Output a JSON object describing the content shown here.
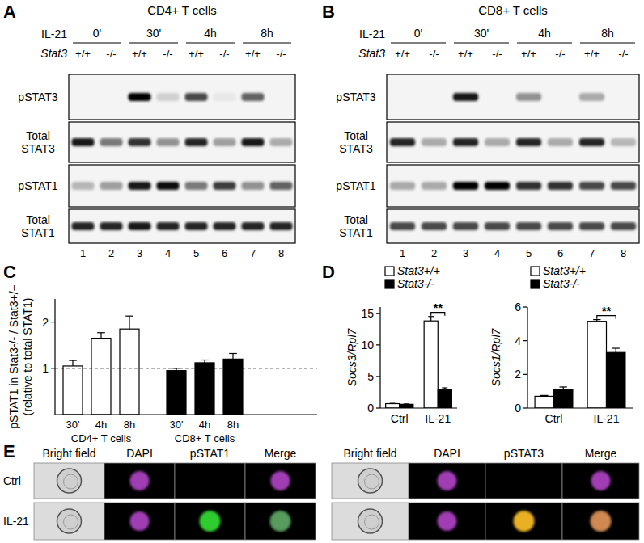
{
  "panel_labels": [
    "A",
    "B",
    "C",
    "D",
    "E"
  ],
  "blots": [
    {
      "title": "CD4+ T cells",
      "treatment": "IL-21",
      "genotype_label": "Stat3",
      "times": [
        "0'",
        "30'",
        "4h",
        "8h"
      ],
      "genotypes": [
        "+/+",
        "-/-",
        "+/+",
        "-/-",
        "+/+",
        "-/-",
        "+/+",
        "-/-"
      ],
      "lanes": [
        1,
        2,
        3,
        4,
        5,
        6,
        7,
        8
      ],
      "rows": [
        {
          "label": "pSTAT3",
          "intensity": [
            0,
            0,
            1,
            0.15,
            0.7,
            0.05,
            0.6,
            0
          ]
        },
        {
          "label": "Total STAT3",
          "intensity": [
            0.9,
            0.5,
            0.8,
            0.4,
            0.85,
            0.35,
            0.9,
            0.3
          ]
        },
        {
          "label": "pSTAT1",
          "intensity": [
            0.25,
            0.35,
            0.9,
            0.95,
            0.5,
            0.75,
            0.4,
            0.6
          ]
        },
        {
          "label": "Total STAT1",
          "intensity": [
            0.85,
            0.85,
            0.9,
            0.85,
            0.85,
            0.85,
            0.85,
            0.85
          ]
        }
      ]
    },
    {
      "title": "CD8+ T cells",
      "treatment": "IL-21",
      "genotype_label": "Stat3",
      "times": [
        "0'",
        "30'",
        "4h",
        "8h"
      ],
      "genotypes": [
        "+/+",
        "-/-",
        "+/+",
        "-/-",
        "+/+",
        "-/-",
        "+/+",
        "-/-"
      ],
      "lanes": [
        1,
        2,
        3,
        4,
        5,
        6,
        7,
        8
      ],
      "rows": [
        {
          "label": "pSTAT3",
          "intensity": [
            0,
            0,
            0.9,
            0,
            0.4,
            0,
            0.3,
            0
          ]
        },
        {
          "label": "Total STAT3",
          "intensity": [
            0.85,
            0.3,
            0.85,
            0.3,
            0.85,
            0.3,
            0.85,
            0.25
          ]
        },
        {
          "label": "pSTAT1",
          "intensity": [
            0.3,
            0.3,
            1,
            1,
            0.8,
            0.8,
            0.7,
            0.7
          ]
        },
        {
          "label": "Total STAT1",
          "intensity": [
            0.7,
            0.7,
            0.7,
            0.7,
            0.7,
            0.7,
            0.7,
            0.7
          ]
        }
      ]
    }
  ],
  "chart_data": [
    {
      "type": "bar",
      "ylabel": "pSTAT1 in Stat3-/- / Stat3+/+",
      "ylabel2": "(relative to total STAT1)",
      "categories": [
        "30'",
        "4h",
        "8h"
      ],
      "series": [
        {
          "name": "CD4+ T cells",
          "color": "#ffffff",
          "values": [
            1.05,
            1.65,
            1.85
          ],
          "errors": [
            0.12,
            0.12,
            0.28
          ]
        },
        {
          "name": "CD8+ T cells",
          "color": "#000000",
          "values": [
            0.95,
            1.12,
            1.2
          ],
          "errors": [
            0.05,
            0.06,
            0.12
          ]
        }
      ],
      "ylim": [
        0,
        2.5
      ],
      "yticks": [
        1,
        2
      ],
      "reference_line": 1
    },
    {
      "type": "bar",
      "ylabel": "Socs3/Rpl7",
      "categories": [
        "Ctrl",
        "IL-21"
      ],
      "series": [
        {
          "name": "Stat3+/+",
          "color": "#ffffff",
          "values": [
            0.7,
            13.8
          ],
          "errors": [
            0.05,
            0.7
          ]
        },
        {
          "name": "Stat3-/-",
          "color": "#000000",
          "values": [
            0.6,
            2.9
          ],
          "errors": [
            0.05,
            0.3
          ]
        }
      ],
      "ylim": [
        0,
        16
      ],
      "yticks": [
        0,
        5,
        10,
        15
      ],
      "legend": "top-left",
      "annotations": [
        {
          "text": "**",
          "category": "IL-21"
        }
      ]
    },
    {
      "type": "bar",
      "ylabel": "Socs1/Rpl7",
      "categories": [
        "Ctrl",
        "IL-21"
      ],
      "series": [
        {
          "name": "Stat3+/+",
          "color": "#ffffff",
          "values": [
            0.7,
            5.15
          ],
          "errors": [
            0.05,
            0.1
          ]
        },
        {
          "name": "Stat3-/-",
          "color": "#000000",
          "values": [
            1.1,
            3.3
          ],
          "errors": [
            0.15,
            0.25
          ]
        }
      ],
      "ylim": [
        0,
        6
      ],
      "yticks": [
        0,
        2,
        4,
        6
      ],
      "legend": "top-left",
      "annotations": [
        {
          "text": "**",
          "category": "IL-21"
        }
      ]
    }
  ],
  "imaging": {
    "rows": [
      "Ctrl",
      "IL-21"
    ],
    "signal": [
      false,
      true
    ],
    "dapi_color": "#a03cb4",
    "panels": [
      {
        "columns": [
          "Bright field",
          "DAPI",
          "pSTAT1",
          "Merge"
        ],
        "color": "#2ecc2e"
      },
      {
        "columns": [
          "Bright field",
          "DAPI",
          "pSTAT3",
          "Merge"
        ],
        "color": "#e8b020"
      }
    ]
  }
}
